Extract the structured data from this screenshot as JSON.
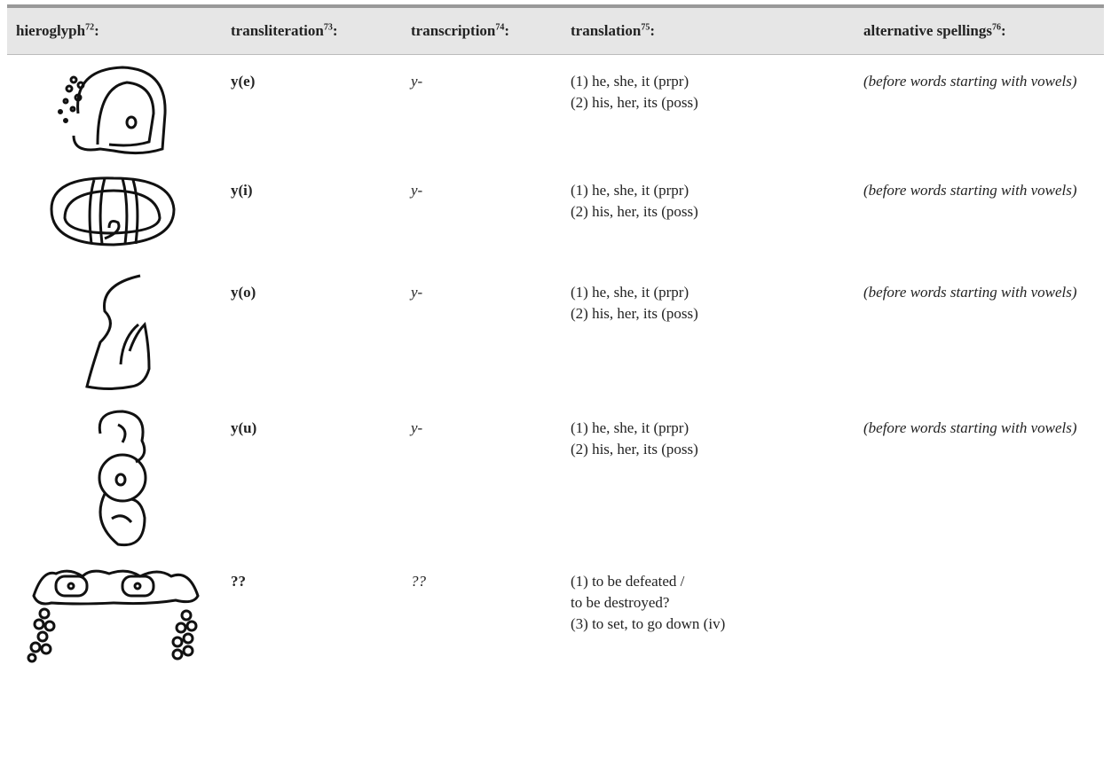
{
  "table": {
    "header": [
      {
        "label": "hieroglyph",
        "note": "72",
        "suffix": ":"
      },
      {
        "label": "transliteration",
        "note": "73",
        "suffix": ":"
      },
      {
        "label": "transcription",
        "note": "74",
        "suffix": ":"
      },
      {
        "label": "translation",
        "note": "75",
        "suffix": ":"
      },
      {
        "label": "alternative spellings",
        "note": "76",
        "suffix": ":"
      }
    ],
    "rows": [
      {
        "transliteration": "y(e)",
        "transcription": "y-",
        "translation": [
          "(1) he, she, it (prpr)",
          "(2) his, her, its (poss)"
        ],
        "alternative": "(before words starting with vowels)"
      },
      {
        "transliteration": "y(i)",
        "transcription": "y-",
        "translation": [
          "(1) he, she, it (prpr)",
          "(2) his, her, its (poss)"
        ],
        "alternative": "(before words starting with vowels)"
      },
      {
        "transliteration": "y(o)",
        "transcription": "y-",
        "translation": [
          "(1) he, she, it (prpr)",
          "(2) his, her, its (poss)"
        ],
        "alternative": "(before words starting with vowels)"
      },
      {
        "transliteration": "y(u)",
        "transcription": "y-",
        "translation": [
          "(1) he, she, it (prpr)",
          "(2) his, her, its (poss)"
        ],
        "alternative": "(before words starting with vowels)"
      },
      {
        "transliteration": "??",
        "transcription": "??",
        "translation": [
          "(1) to be defeated /",
          "to be destroyed?",
          "(3) to set, to go down (iv)"
        ]
      }
    ]
  }
}
